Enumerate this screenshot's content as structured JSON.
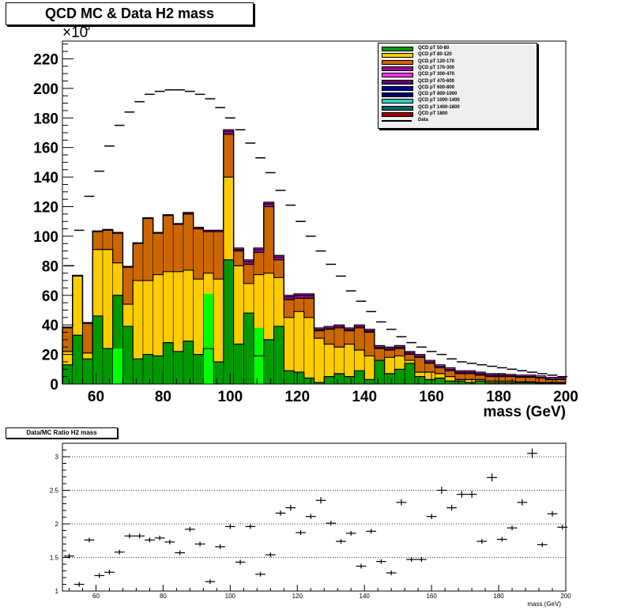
{
  "chart_data": [
    {
      "type": "bar",
      "title": "QCD MC & Data H2 mass",
      "xlabel": "mass (GeV)",
      "ylabel": "",
      "y_multiplier_label": "×10",
      "y_multiplier_exp": "3",
      "xlim": [
        50,
        200
      ],
      "ylim": [
        0,
        232
      ],
      "x_ticks": [
        60,
        80,
        100,
        120,
        140,
        160,
        180,
        200
      ],
      "y_ticks": [
        0,
        20,
        40,
        60,
        80,
        100,
        120,
        140,
        160,
        180,
        200,
        220
      ],
      "stacked": true,
      "legend_position": "top-right",
      "bin_edges": [
        50,
        53,
        56,
        59,
        62,
        65,
        68,
        71,
        74,
        77,
        80,
        83,
        86,
        89,
        92,
        95,
        98,
        101,
        104,
        107,
        110,
        113,
        116,
        119,
        122,
        125,
        128,
        131,
        134,
        137,
        140,
        143,
        146,
        149,
        152,
        155,
        158,
        161,
        164,
        167,
        170,
        173,
        176,
        179,
        182,
        185,
        188,
        191,
        194,
        197,
        200
      ],
      "series": [
        {
          "name": "QCD pT 50-80",
          "color": "#009900",
          "values": [
            13,
            33,
            17,
            46,
            24,
            60,
            39,
            17,
            20,
            19,
            28,
            22,
            29,
            20,
            24,
            15,
            84,
            27,
            48,
            19,
            30,
            39,
            9,
            8,
            4,
            1,
            5,
            7,
            5,
            9,
            3,
            16,
            7,
            10,
            14,
            5,
            3,
            4,
            2,
            2,
            1,
            2,
            1,
            1,
            1,
            1,
            1,
            0.5,
            0.5,
            0.5
          ]
        },
        {
          "name": "QCD pT 80-120",
          "color": "#ffcc00",
          "values": [
            9,
            40,
            4,
            45,
            67,
            22,
            15,
            53,
            50,
            55,
            48,
            54,
            48,
            51,
            51,
            56,
            56,
            53,
            20,
            55,
            45,
            33,
            36,
            41,
            41,
            30,
            22,
            18,
            22,
            14,
            16,
            0,
            11,
            9,
            2,
            3,
            5,
            3,
            3,
            1,
            2,
            1,
            1,
            1,
            1,
            0.5,
            0.5,
            0.5,
            0.5,
            0.5
          ]
        },
        {
          "name": "QCD pT 120-170",
          "color": "#cc6600",
          "values": [
            16,
            0,
            20,
            12,
            13,
            20,
            25,
            25,
            42,
            28,
            38,
            32,
            38,
            34,
            28,
            32,
            29,
            10,
            13,
            15,
            45,
            12,
            12,
            9,
            13,
            5,
            10,
            13,
            9,
            15,
            16,
            8,
            5,
            5,
            4,
            10,
            6,
            4,
            4,
            4,
            4,
            3,
            3,
            3,
            3,
            3,
            3,
            3,
            2,
            2
          ]
        },
        {
          "name": "QCD pT 170-300",
          "color": "#990099",
          "values": [
            0.5,
            0.5,
            0.5,
            0.5,
            0.5,
            0.5,
            0.5,
            0.5,
            0.5,
            0.5,
            0.5,
            0.5,
            1,
            1,
            1,
            1,
            2,
            1,
            2,
            2,
            2,
            2,
            2,
            2,
            2,
            1,
            1,
            1,
            1,
            1,
            1,
            1,
            1,
            1,
            1,
            1,
            1,
            1,
            1,
            1,
            1,
            1,
            1,
            1,
            0.5,
            0.5,
            0.5,
            0.5,
            0.5,
            0.5
          ]
        },
        {
          "name": "QCD pT 300-470",
          "color": "#ff33ff",
          "values": [
            0,
            0,
            0,
            0,
            0,
            0,
            0,
            0,
            0,
            0,
            0,
            0,
            0,
            0,
            0,
            0,
            1,
            1,
            1,
            1,
            1,
            1,
            1,
            1,
            1,
            1,
            1,
            1,
            1,
            1,
            1,
            1,
            1,
            1,
            1,
            1,
            1,
            1,
            1,
            1,
            1,
            1,
            1,
            1,
            1,
            1,
            1,
            1,
            1,
            1
          ]
        },
        {
          "name": "QCD pT 470-600",
          "color": "#660066",
          "values": []
        },
        {
          "name": "QCD pT 600-800",
          "color": "#000099",
          "values": []
        },
        {
          "name": "QCD pT 800-1000",
          "color": "#000066",
          "values": []
        },
        {
          "name": "QCD pT 1000-1400",
          "color": "#33cccc",
          "values": []
        },
        {
          "name": "QCD pT 1400-1800",
          "color": "#006666",
          "values": []
        },
        {
          "name": "QCD pT 1800",
          "color": "#990000",
          "values": []
        }
      ],
      "bright_green_bins": [
        {
          "bin": 5,
          "value": 24
        },
        {
          "bin": 14,
          "value": 61
        },
        {
          "bin": 19,
          "value": 38
        }
      ],
      "data": {
        "name": "Data",
        "x": [
          52,
          55,
          58,
          61,
          64,
          67,
          70,
          73,
          76,
          79,
          82,
          85,
          88,
          91,
          94,
          97,
          100,
          103,
          106,
          109,
          112,
          115,
          118,
          121,
          124,
          127,
          130,
          133,
          136,
          139,
          142,
          145,
          148,
          151,
          154,
          157,
          160,
          163,
          166,
          169,
          172,
          175,
          178,
          181,
          184,
          187,
          190,
          193,
          196,
          199
        ],
        "y": [
          80,
          104,
          127,
          144,
          161,
          175,
          184,
          191,
          196,
          198,
          199,
          199,
          198,
          196,
          193,
          187,
          180,
          172,
          163,
          153,
          143,
          131,
          121,
          110,
          100,
          90,
          81,
          73,
          63,
          56,
          49,
          42,
          37,
          32,
          28,
          25,
          22,
          20,
          17,
          15,
          14,
          13,
          12,
          11,
          10,
          9,
          8,
          7,
          6,
          5
        ]
      }
    },
    {
      "type": "scatter",
      "title": "Data/MC Ratio H2 mass",
      "xlabel": "mass (GeV)",
      "ylabel": "",
      "xlim": [
        50,
        200
      ],
      "ylim": [
        1,
        3.2
      ],
      "x_ticks": [
        60,
        80,
        100,
        120,
        140,
        160,
        180,
        200
      ],
      "y_ticks": [
        1,
        1.5,
        2,
        2.5,
        3
      ],
      "y_tick_labels": [
        "1",
        "1.5",
        "2",
        "2.5",
        "3"
      ],
      "grid": "dotted horizontal",
      "x": [
        52,
        55,
        58,
        61,
        64,
        67,
        70,
        73,
        76,
        79,
        82,
        85,
        88,
        91,
        94,
        97,
        100,
        103,
        106,
        109,
        112,
        115,
        118,
        121,
        124,
        127,
        130,
        133,
        136,
        139,
        142,
        145,
        148,
        151,
        154,
        157,
        160,
        163,
        166,
        169,
        172,
        175,
        178,
        181,
        184,
        187,
        190,
        193,
        196,
        199
      ],
      "y": [
        1.52,
        1.1,
        1.76,
        1.23,
        1.28,
        1.58,
        1.82,
        1.82,
        1.76,
        1.79,
        1.73,
        1.57,
        1.92,
        1.7,
        1.14,
        1.66,
        1.96,
        1.43,
        1.96,
        1.25,
        1.54,
        2.16,
        2.24,
        1.87,
        2.11,
        2.35,
        2.01,
        1.74,
        1.86,
        1.37,
        1.89,
        1.44,
        1.27,
        2.32,
        1.47,
        1.47,
        2.11,
        2.5,
        2.24,
        2.44,
        2.44,
        1.74,
        2.69,
        1.77,
        1.94,
        2.32,
        3.05,
        1.69,
        2.15,
        1.95
      ]
    }
  ]
}
